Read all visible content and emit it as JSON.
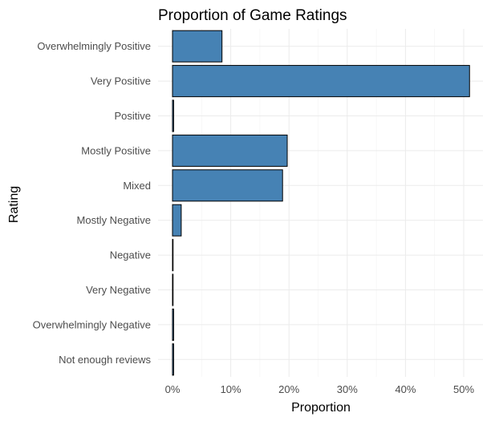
{
  "chart_data": {
    "type": "bar",
    "orientation": "horizontal",
    "title": "Proportion of Game Ratings",
    "xlabel": "Proportion",
    "ylabel": "Rating",
    "categories": [
      "Overwhelmingly Positive",
      "Very Positive",
      "Positive",
      "Mostly Positive",
      "Mixed",
      "Mostly Negative",
      "Negative",
      "Very Negative",
      "Overwhelmingly Negative",
      "Not enough reviews"
    ],
    "values": [
      0.085,
      0.51,
      0.002,
      0.197,
      0.189,
      0.015,
      0.001,
      0.001,
      0.002,
      0.002
    ],
    "xlim": [
      0,
      0.52
    ],
    "xticks": [
      0,
      0.1,
      0.2,
      0.3,
      0.4,
      0.5
    ],
    "xtick_labels": [
      "0%",
      "10%",
      "20%",
      "30%",
      "40%",
      "50%"
    ],
    "bar_color": "#4682b4",
    "grid": true,
    "legend": "none"
  }
}
